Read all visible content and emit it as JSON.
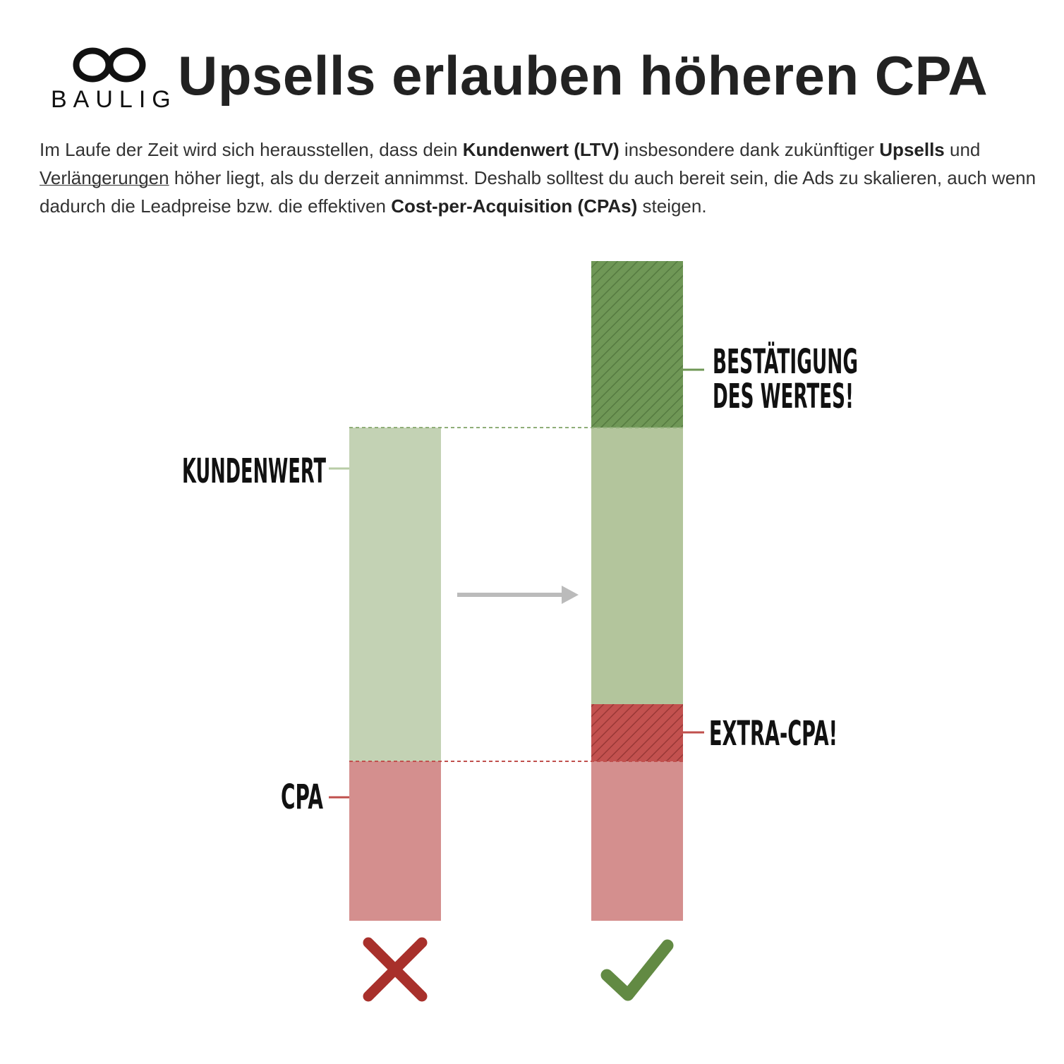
{
  "header": {
    "logo": "BAULIG",
    "title": "Upsells erlauben höheren CPA"
  },
  "paragraph": {
    "runs": [
      "Im Laufe der Zeit wird sich herausstellen, dass dein ",
      "Kundenwert (LTV)",
      " insbesondere dank zukünftiger ",
      "Upsells",
      " und ",
      "Verlängerungen",
      " höher liegt, als du derzeit annimmst. Deshalb solltest du auch bereit sein, die Ads zu skalieren, auch wenn dadurch die Leadpreise bzw. die effektiven ",
      "Cost-per-Acquisition (CPAs)",
      " steigen."
    ]
  },
  "diagram": {
    "labels": {
      "kundenwert": "KUNDENWERT",
      "cpa": "CPA",
      "confirmation": [
        "BESTÄTIGUNG",
        "DES WERTES!"
      ],
      "extra_cpa": "EXTRA-CPA!"
    }
  }
}
